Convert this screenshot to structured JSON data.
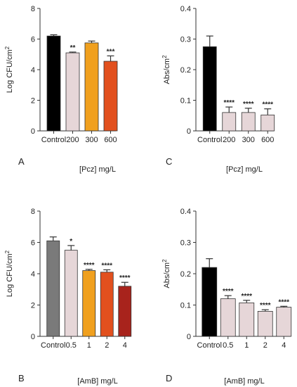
{
  "chart_data": [
    {
      "type": "bar",
      "panel": "A",
      "title": "",
      "xlabel": "[Pcz] mg/L",
      "ylabel": "Log CFU/cm",
      "ylabel_sup": "2",
      "categories": [
        "Control",
        "200",
        "300",
        "600"
      ],
      "values": [
        6.2,
        5.1,
        5.75,
        4.55
      ],
      "errors": [
        0.08,
        0.05,
        0.12,
        0.35
      ],
      "significance": [
        "",
        "**",
        "",
        "***"
      ],
      "colors": [
        "#000000",
        "#e6d6d8",
        "#f0a01e",
        "#e2501e"
      ],
      "ylim": [
        0,
        8
      ],
      "yticks": [
        "0",
        "2",
        "4",
        "6",
        "8"
      ]
    },
    {
      "type": "bar",
      "panel": "C",
      "title": "",
      "xlabel": "[Pcz] mg/L",
      "ylabel": "Abs/cm",
      "ylabel_sup": "2",
      "categories": [
        "Control",
        "200",
        "300",
        "600"
      ],
      "values": [
        0.275,
        0.06,
        0.06,
        0.052
      ],
      "errors": [
        0.035,
        0.018,
        0.014,
        0.02
      ],
      "significance": [
        "",
        "****",
        "****",
        "****"
      ],
      "colors": [
        "#000000",
        "#e6d6d8",
        "#e6d6d8",
        "#e6d6d8"
      ],
      "ylim": [
        0,
        0.4
      ],
      "yticks": [
        "0",
        "0.1",
        "0.2",
        "0.3",
        "0.4"
      ]
    },
    {
      "type": "bar",
      "panel": "B",
      "title": "",
      "xlabel": "[AmB] mg/L",
      "ylabel": "Log CFU/cm",
      "ylabel_sup": "2",
      "categories": [
        "Control",
        "0.5",
        "1",
        "2",
        "4"
      ],
      "values": [
        6.1,
        5.5,
        4.2,
        4.1,
        3.2
      ],
      "errors": [
        0.25,
        0.3,
        0.08,
        0.15,
        0.25
      ],
      "significance": [
        "",
        "*",
        "****",
        "****",
        "****"
      ],
      "colors": [
        "#7a7a7a",
        "#e6d6d8",
        "#f0a01e",
        "#e2501e",
        "#a8231c"
      ],
      "ylim": [
        0,
        8
      ],
      "yticks": [
        "0",
        "2",
        "4",
        "6",
        "8"
      ]
    },
    {
      "type": "bar",
      "panel": "D",
      "title": "",
      "xlabel": "[AmB] mg/L",
      "ylabel": "Abs/cm",
      "ylabel_sup": "2",
      "categories": [
        "Control",
        "0.5",
        "1",
        "2",
        "4"
      ],
      "values": [
        0.22,
        0.12,
        0.107,
        0.08,
        0.093
      ],
      "errors": [
        0.028,
        0.01,
        0.008,
        0.005,
        0.003
      ],
      "significance": [
        "",
        "****",
        "****",
        "****",
        "****"
      ],
      "colors": [
        "#000000",
        "#e6d6d8",
        "#e6d6d8",
        "#e6d6d8",
        "#e6d6d8"
      ],
      "ylim": [
        0,
        0.4
      ],
      "yticks": [
        "0",
        "0.1",
        "0.2",
        "0.3",
        "0.4"
      ]
    }
  ]
}
